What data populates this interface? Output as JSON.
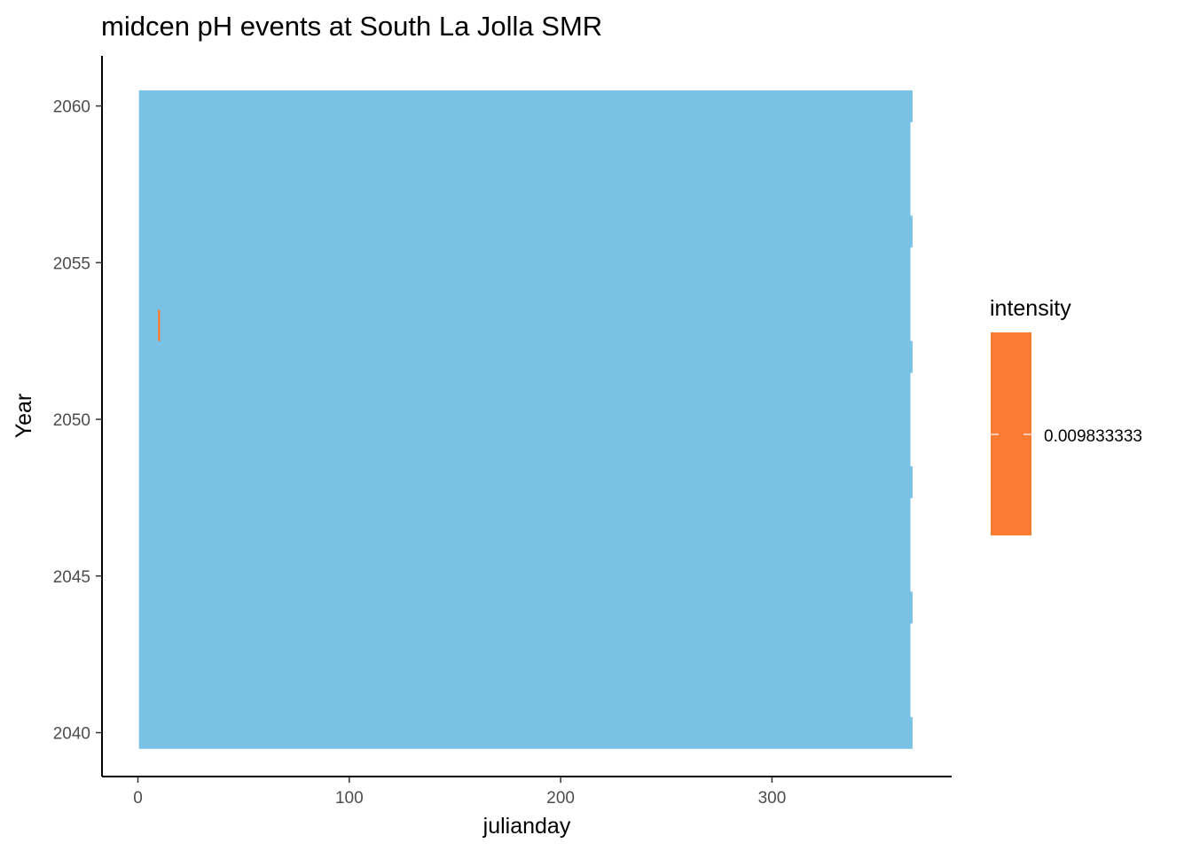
{
  "chart_data": {
    "type": "heatmap",
    "title": "midcen pH events at South La Jolla SMR",
    "xlabel": "julianday",
    "ylabel": "Year",
    "xlim": [
      -17,
      385
    ],
    "ylim": [
      2038.6,
      2061.6
    ],
    "xticks": [
      0,
      100,
      200,
      300
    ],
    "yticks": [
      2040,
      2045,
      2050,
      2055,
      2060
    ],
    "grid": false,
    "background_color": "#7AC2E5",
    "background_tiles": {
      "day_range": [
        1,
        365
      ],
      "leap_year_day_range": [
        1,
        366
      ],
      "years": [
        2040,
        2041,
        2042,
        2043,
        2044,
        2045,
        2046,
        2047,
        2048,
        2049,
        2050,
        2051,
        2052,
        2053,
        2054,
        2055,
        2056,
        2057,
        2058,
        2059,
        2060
      ],
      "leap_years": [
        2040,
        2044,
        2048,
        2052,
        2056,
        2060
      ]
    },
    "events": [
      {
        "year": 2053,
        "julianday": 10,
        "intensity": 0.009833333
      }
    ],
    "event_color": "#FC7B34",
    "legend": {
      "title": "intensity",
      "labels": [
        "0.009833333"
      ],
      "placement": "right"
    }
  }
}
